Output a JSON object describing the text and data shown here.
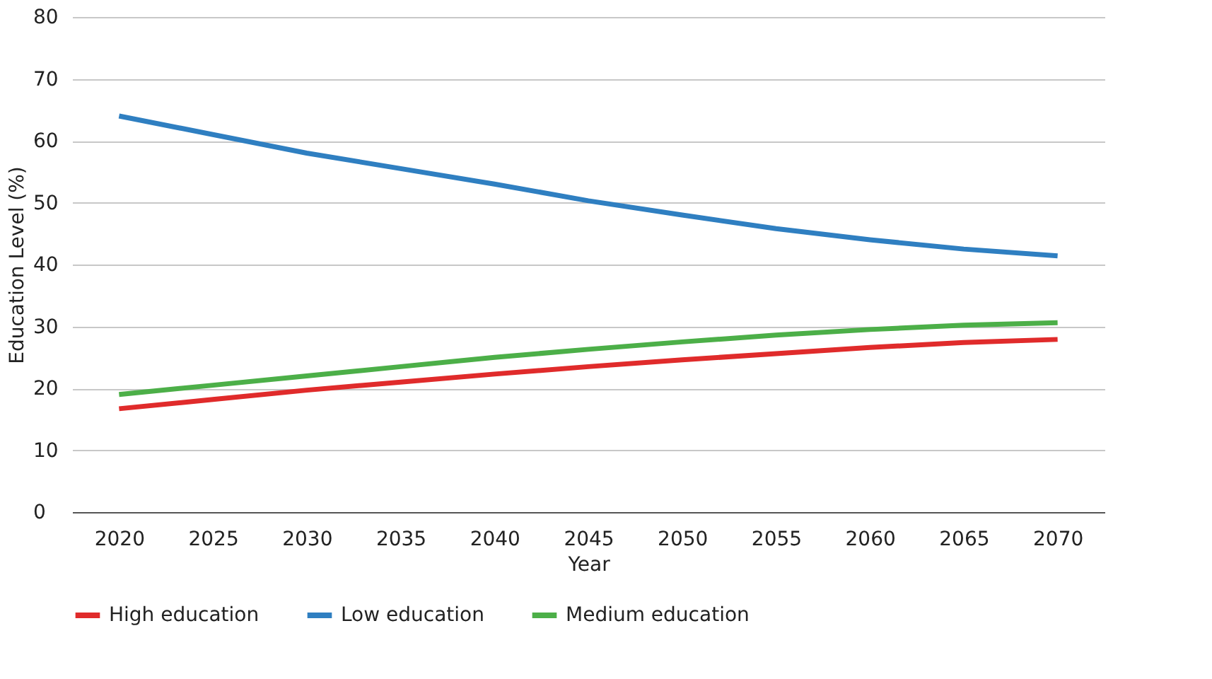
{
  "chart_data": {
    "type": "line",
    "xlabel": "Year",
    "ylabel": "Education Level (%)",
    "categories": [
      "2020",
      "2025",
      "2030",
      "2035",
      "2040",
      "2045",
      "2050",
      "2055",
      "2060",
      "2065",
      "2070"
    ],
    "series": [
      {
        "name": "High education",
        "color": "#e02b2b",
        "values": [
          16.7,
          18.2,
          19.7,
          21,
          22.3,
          23.5,
          24.6,
          25.6,
          26.6,
          27.4,
          27.9
        ]
      },
      {
        "name": "Low education",
        "color": "#2f7fc1",
        "values": [
          64,
          61,
          58,
          55.5,
          53,
          50.3,
          48,
          45.8,
          44,
          42.5,
          41.4
        ]
      },
      {
        "name": "Medium education",
        "color": "#4caf48",
        "values": [
          19,
          20.5,
          22,
          23.5,
          25,
          26.3,
          27.5,
          28.6,
          29.5,
          30.2,
          30.6
        ]
      }
    ],
    "ylim": [
      0,
      80
    ],
    "yticks": [
      0,
      10,
      20,
      30,
      40,
      50,
      60,
      70,
      80
    ],
    "grid": "y",
    "legend": "bottom left",
    "marker": "none",
    "line_style": "solid"
  }
}
